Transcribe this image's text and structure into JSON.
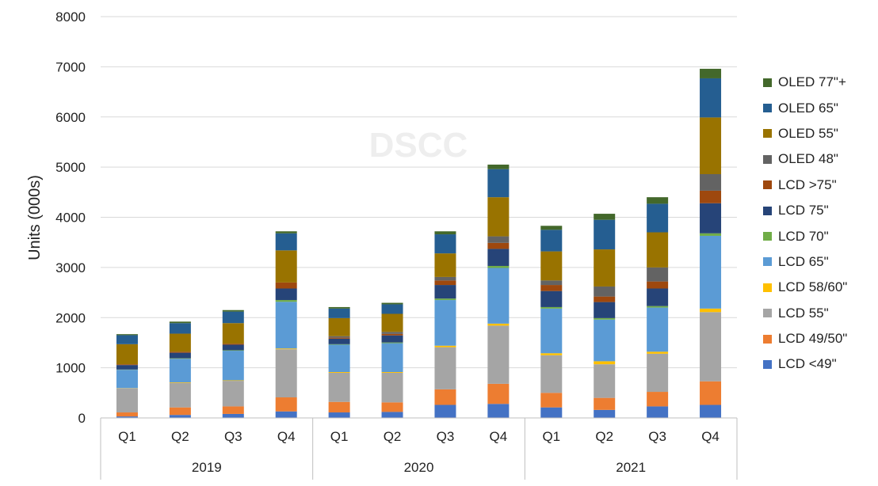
{
  "chart_data": {
    "type": "bar",
    "stacked": true,
    "watermark": "DSCC",
    "ylabel": "Units (000s)",
    "xlabel": "",
    "ylim": [
      0,
      8000
    ],
    "yticks": [
      0,
      1000,
      2000,
      3000,
      4000,
      5000,
      6000,
      7000,
      8000
    ],
    "grid": true,
    "legend_position": "right",
    "categories": [
      "Q1",
      "Q2",
      "Q3",
      "Q4",
      "Q1",
      "Q2",
      "Q3",
      "Q4",
      "Q1",
      "Q2",
      "Q3",
      "Q4"
    ],
    "groups": [
      {
        "label": "2019",
        "span": 4
      },
      {
        "label": "2020",
        "span": 4
      },
      {
        "label": "2021",
        "span": 4
      }
    ],
    "series": [
      {
        "name": "LCD <49\"",
        "color": "#4472c4",
        "values": [
          30,
          60,
          80,
          130,
          110,
          120,
          260,
          280,
          210,
          160,
          230,
          260
        ]
      },
      {
        "name": "LCD 49/50\"",
        "color": "#ed7d31",
        "values": [
          80,
          150,
          150,
          280,
          210,
          190,
          310,
          400,
          290,
          240,
          290,
          470
        ]
      },
      {
        "name": "LCD 55\"",
        "color": "#a5a5a5",
        "values": [
          480,
          490,
          510,
          960,
          580,
          590,
          840,
          1160,
          750,
          670,
          760,
          1380
        ]
      },
      {
        "name": "LCD 58/60\"",
        "color": "#ffc000",
        "values": [
          5,
          10,
          10,
          15,
          15,
          15,
          30,
          40,
          40,
          60,
          40,
          70
        ]
      },
      {
        "name": "LCD 65\"",
        "color": "#5b9bd5",
        "values": [
          365,
          470,
          590,
          930,
          545,
          575,
          910,
          1110,
          890,
          830,
          880,
          1450
        ]
      },
      {
        "name": "LCD 70\"",
        "color": "#70ad47",
        "values": [
          5,
          10,
          10,
          35,
          10,
          15,
          30,
          40,
          30,
          30,
          30,
          50
        ]
      },
      {
        "name": "LCD 75\"",
        "color": "#264478",
        "values": [
          90,
          110,
          110,
          230,
          110,
          140,
          270,
          340,
          320,
          320,
          350,
          600
        ]
      },
      {
        "name": "LCD >75\"",
        "color": "#9e480e",
        "values": [
          15,
          20,
          20,
          120,
          20,
          30,
          90,
          120,
          120,
          110,
          140,
          250
        ]
      },
      {
        "name": "OLED 48\"",
        "color": "#636363",
        "values": [
          0,
          0,
          0,
          0,
          30,
          40,
          70,
          130,
          90,
          200,
          280,
          330
        ]
      },
      {
        "name": "OLED 55\"",
        "color": "#997300",
        "values": [
          400,
          360,
          410,
          640,
          360,
          360,
          470,
          780,
          580,
          740,
          700,
          1130
        ]
      },
      {
        "name": "OLED 65\"",
        "color": "#255e91",
        "values": [
          180,
          210,
          230,
          340,
          190,
          190,
          380,
          560,
          430,
          590,
          570,
          780
        ]
      },
      {
        "name": "OLED 77\"+",
        "color": "#43682b",
        "values": [
          20,
          30,
          30,
          40,
          30,
          30,
          60,
          90,
          80,
          120,
          130,
          190
        ]
      }
    ]
  }
}
